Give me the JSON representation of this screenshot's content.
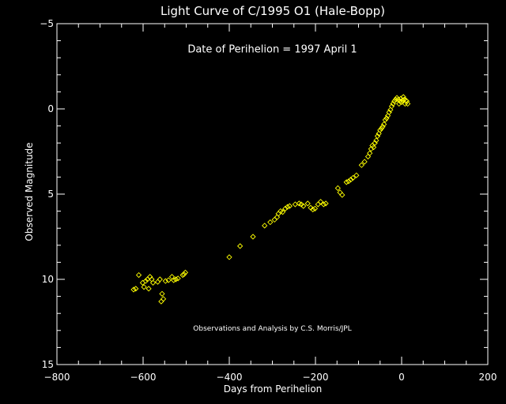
{
  "chart_data": {
    "type": "scatter",
    "title": "Light Curve of C/1995 O1 (Hale-Bopp)",
    "xlabel": "Days from Perihelion",
    "ylabel": "Observed Magnitude",
    "xlim": [
      -800,
      200
    ],
    "ylim": [
      15,
      -5
    ],
    "y_inverted": true,
    "x_ticks": [
      -800,
      -600,
      -400,
      -200,
      0,
      200
    ],
    "x_tick_labels": [
      "−800",
      "−600",
      "−400",
      "−200",
      "0",
      "200"
    ],
    "y_ticks": [
      -5,
      0,
      5,
      10,
      15
    ],
    "y_tick_labels": [
      "−5",
      "0",
      "5",
      "10",
      "15"
    ],
    "grid": false,
    "marker": "diamond",
    "annotations": [
      {
        "text": "Date of Perihelion = 1997 April 1",
        "x": -300,
        "y": -3.3
      },
      {
        "text": "Observations and Analysis by C.S. Morris/JPL",
        "x": -300,
        "y": 13.0
      }
    ],
    "colors": {
      "background": "#000000",
      "axes": "#ffffff",
      "text": "#ffffff",
      "points": "#ffff00"
    },
    "series": [
      {
        "points": [
          [
            -622,
            10.6
          ],
          [
            -617,
            10.55
          ],
          [
            -610,
            9.75
          ],
          [
            -601,
            10.2
          ],
          [
            -598,
            10.45
          ],
          [
            -594,
            10.1
          ],
          [
            -590,
            10.0
          ],
          [
            -587,
            10.55
          ],
          [
            -584,
            9.85
          ],
          [
            -580,
            10.0
          ],
          [
            -577,
            10.2
          ],
          [
            -566,
            10.15
          ],
          [
            -561,
            10.0
          ],
          [
            -558,
            11.3
          ],
          [
            -556,
            10.85
          ],
          [
            -553,
            11.15
          ],
          [
            -548,
            10.1
          ],
          [
            -541,
            10.05
          ],
          [
            -533,
            9.85
          ],
          [
            -529,
            10.05
          ],
          [
            -524,
            10.0
          ],
          [
            -519,
            9.95
          ],
          [
            -508,
            9.75
          ],
          [
            -505,
            9.7
          ],
          [
            -502,
            9.6
          ],
          [
            -400,
            8.7
          ],
          [
            -375,
            8.05
          ],
          [
            -345,
            7.5
          ],
          [
            -318,
            6.85
          ],
          [
            -305,
            6.65
          ],
          [
            -295,
            6.5
          ],
          [
            -289,
            6.35
          ],
          [
            -286,
            6.15
          ],
          [
            -281,
            6.0
          ],
          [
            -276,
            6.05
          ],
          [
            -270,
            5.85
          ],
          [
            -265,
            5.75
          ],
          [
            -260,
            5.7
          ],
          [
            -247,
            5.6
          ],
          [
            -238,
            5.55
          ],
          [
            -233,
            5.6
          ],
          [
            -228,
            5.7
          ],
          [
            -218,
            5.55
          ],
          [
            -211,
            5.8
          ],
          [
            -206,
            5.9
          ],
          [
            -201,
            5.85
          ],
          [
            -194,
            5.6
          ],
          [
            -188,
            5.45
          ],
          [
            -181,
            5.6
          ],
          [
            -176,
            5.55
          ],
          [
            -148,
            4.65
          ],
          [
            -143,
            4.9
          ],
          [
            -138,
            5.05
          ],
          [
            -128,
            4.3
          ],
          [
            -123,
            4.25
          ],
          [
            -118,
            4.15
          ],
          [
            -113,
            4.05
          ],
          [
            -105,
            3.9
          ],
          [
            -93,
            3.3
          ],
          [
            -86,
            3.1
          ],
          [
            -78,
            2.8
          ],
          [
            -74,
            2.6
          ],
          [
            -71,
            2.35
          ],
          [
            -68,
            2.15
          ],
          [
            -65,
            2.25
          ],
          [
            -62,
            2.0
          ],
          [
            -59,
            1.85
          ],
          [
            -56,
            1.6
          ],
          [
            -53,
            1.45
          ],
          [
            -50,
            1.25
          ],
          [
            -47,
            1.15
          ],
          [
            -44,
            1.05
          ],
          [
            -41,
            0.9
          ],
          [
            -38,
            0.65
          ],
          [
            -35,
            0.55
          ],
          [
            -32,
            0.4
          ],
          [
            -29,
            0.2
          ],
          [
            -26,
            0.05
          ],
          [
            -23,
            -0.15
          ],
          [
            -20,
            -0.3
          ],
          [
            -17,
            -0.45
          ],
          [
            -14,
            -0.55
          ],
          [
            -11,
            -0.65
          ],
          [
            -8,
            -0.55
          ],
          [
            -6,
            -0.3
          ],
          [
            -4,
            -0.45
          ],
          [
            -2,
            -0.6
          ],
          [
            0,
            -0.4
          ],
          [
            2,
            -0.5
          ],
          [
            4,
            -0.7
          ],
          [
            6,
            -0.55
          ],
          [
            8,
            -0.3
          ],
          [
            10,
            -0.5
          ],
          [
            12,
            -0.45
          ],
          [
            14,
            -0.3
          ]
        ]
      }
    ]
  }
}
